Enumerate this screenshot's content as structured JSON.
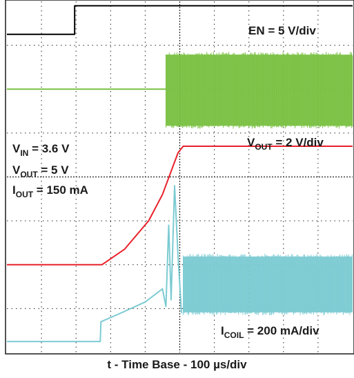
{
  "chart_data": {
    "type": "line",
    "title": "",
    "xlabel": "t - Time Base - 100 µs/div",
    "grid": true,
    "divisions": {
      "horizontal": 10,
      "vertical": 8
    },
    "x_range_div": [
      0,
      10
    ],
    "y_range_div": [
      0,
      8
    ],
    "annotations": {
      "en_scale": "EN = 5 V/div",
      "vout_scale_main": "V",
      "vout_scale_sub": "OUT",
      "vout_scale_rest": " = 2 V/div",
      "vin_main": "V",
      "vin_sub": "IN",
      "vin_rest": " = 3.6 V",
      "vout_cond_main": "V",
      "vout_cond_sub": "OUT",
      "vout_cond_rest": " = 5 V",
      "iout_main": "I",
      "iout_sub": "OUT",
      "iout_rest": " = 150 mA",
      "icoil_main": "I",
      "icoil_sub": "COIL",
      "icoil_rest": " = 200 mA/div"
    },
    "series": [
      {
        "key": "EN",
        "color": "#000000",
        "points": [
          [
            0,
            7.25
          ],
          [
            1.96,
            7.25
          ],
          [
            1.96,
            7.9
          ],
          [
            10,
            7.9
          ]
        ]
      },
      {
        "key": "SW",
        "color": "#7ac142",
        "baseline": 6.0,
        "switching_start": 4.6,
        "band": [
          5.1,
          6.85
        ]
      },
      {
        "key": "VOUT",
        "color": "#e8202a",
        "points": [
          [
            0,
            2.0
          ],
          [
            2.75,
            2.0
          ],
          [
            3.4,
            2.35
          ],
          [
            4.1,
            3.0
          ],
          [
            4.5,
            3.6
          ],
          [
            4.95,
            4.55
          ],
          [
            5.1,
            4.7
          ],
          [
            10,
            4.7
          ]
        ]
      },
      {
        "key": "ICOIL",
        "color": "#7ccbd3",
        "points": [
          [
            0,
            0.25
          ],
          [
            2.7,
            0.25
          ],
          [
            2.72,
            0.7
          ],
          [
            3.3,
            0.9
          ],
          [
            4.0,
            1.15
          ],
          [
            4.5,
            1.45
          ],
          [
            4.6,
            1.05
          ],
          [
            4.68,
            2.9
          ],
          [
            4.75,
            1.2
          ],
          [
            4.85,
            3.8
          ],
          [
            4.95,
            2.2
          ],
          [
            5.05,
            0.9
          ]
        ],
        "band_start": 5.1,
        "band": [
          0.85,
          2.25
        ]
      }
    ]
  }
}
